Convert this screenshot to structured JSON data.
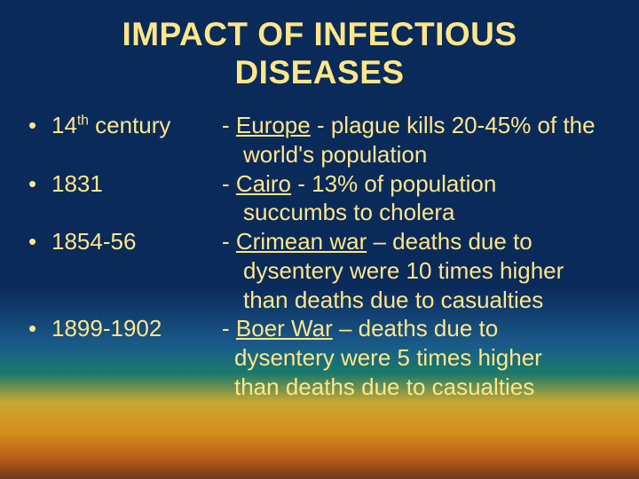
{
  "colors": {
    "text": "#ffe68a",
    "gradient_stops": [
      "#0a2a5a",
      "#0a2a5a",
      "#1a5a8a",
      "#1a7a6a",
      "#c9a832",
      "#d4901a",
      "#b85a1a",
      "#6a3a1a"
    ]
  },
  "typography": {
    "title_fontsize": 37,
    "body_fontsize": 26,
    "font_family": "Arial"
  },
  "title_line1": "IMPACT OF INFECTIOUS",
  "title_line2": "DISEASES",
  "bullet_glyph": "•",
  "rows": [
    {
      "date_prefix": "14",
      "date_sup": "th",
      "date_suffix": " century",
      "desc_dash": "- ",
      "desc_underlined": "Europe",
      "desc_after_u": " - plague kills 20-45% of the",
      "cont": [
        "world's population"
      ],
      "cont_class": "cont"
    },
    {
      "date_prefix": "1831",
      "date_sup": "",
      "date_suffix": "",
      "desc_dash": "- ",
      "desc_underlined": "Cairo",
      "desc_after_u": " - 13% of population",
      "cont": [
        "succumbs to cholera"
      ],
      "cont_class": "cont"
    },
    {
      "date_prefix": "1854-56",
      "date_sup": "",
      "date_suffix": "",
      "desc_dash": "- ",
      "desc_underlined": "Crimean war",
      "desc_after_u": " – deaths due to",
      "cont": [
        "dysentery were 10 times higher",
        "than deaths due to casualties"
      ],
      "cont_class": "cont"
    },
    {
      "date_prefix": "1899-1902",
      "date_sup": "",
      "date_suffix": "",
      "desc_dash": "- ",
      "desc_underlined": "Boer War",
      "desc_after_u": " – deaths due to",
      "cont": [
        "dysentery were 5 times higher",
        "than deaths due to casualties"
      ],
      "cont_class": "cont-tight"
    }
  ]
}
